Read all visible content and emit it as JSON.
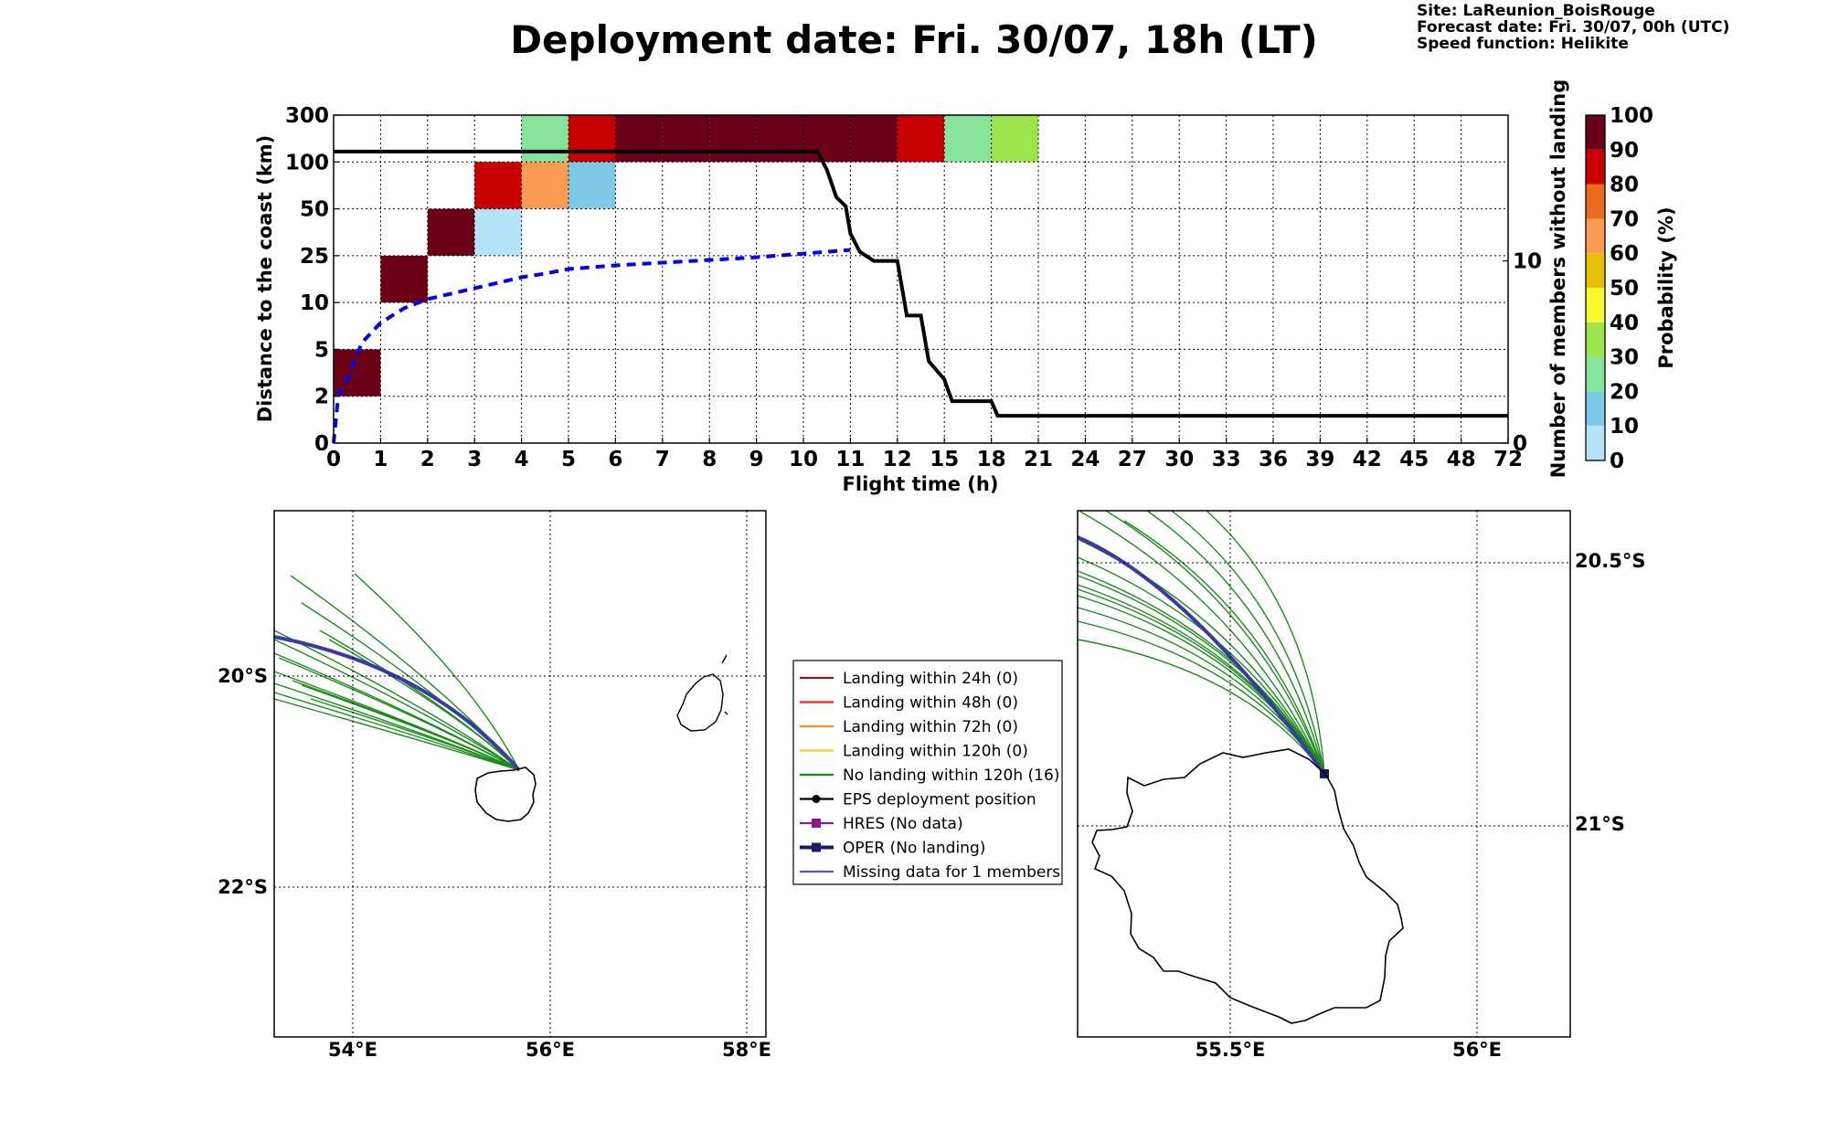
{
  "title": "Deployment date: Fri. 30/07, 18h (LT)",
  "info": {
    "site": "Site: LaReunion_BoisRouge",
    "forecast": "Forecast date: Fri. 30/07, 00h (UTC)",
    "speed": "Speed function: Helikite"
  },
  "chart_data": [
    {
      "type": "heatmap",
      "xlabel": "Flight time (h)",
      "ylabel": "Distance to the coast (km)",
      "y2label": "Number of members without landing",
      "x_ticks": [
        "0",
        "1",
        "2",
        "3",
        "4",
        "5",
        "6",
        "7",
        "8",
        "9",
        "10",
        "11",
        "12",
        "15",
        "18",
        "21",
        "24",
        "27",
        "30",
        "33",
        "36",
        "39",
        "42",
        "45",
        "48",
        "72"
      ],
      "y_ticks": [
        "0",
        "2",
        "5",
        "10",
        "25",
        "50",
        "100",
        "300"
      ],
      "y2_ticks": [
        "0",
        "10"
      ],
      "y2lim": [
        0,
        18
      ],
      "grid": true,
      "cells": [
        {
          "x": "0-1",
          "y": "2-5",
          "prob": 100
        },
        {
          "x": "1-2",
          "y": "10-25",
          "prob": 100
        },
        {
          "x": "2-3",
          "y": "25-50",
          "prob": 100
        },
        {
          "x": "3-4",
          "y": "50-100",
          "prob": 85
        },
        {
          "x": "3-4",
          "y": "25-50",
          "prob": 5
        },
        {
          "x": "4-5",
          "y": "100-300",
          "prob": 25
        },
        {
          "x": "4-5",
          "y": "50-100",
          "prob": 65
        },
        {
          "x": "5-6",
          "y": "100-300",
          "prob": 85
        },
        {
          "x": "5-6",
          "y": "50-100",
          "prob": 15
        },
        {
          "x": "6-7",
          "y": "100-300",
          "prob": 100
        },
        {
          "x": "7-8",
          "y": "100-300",
          "prob": 100
        },
        {
          "x": "8-9",
          "y": "100-300",
          "prob": 100
        },
        {
          "x": "9-10",
          "y": "100-300",
          "prob": 100
        },
        {
          "x": "10-11",
          "y": "100-300",
          "prob": 100
        },
        {
          "x": "11-12",
          "y": "100-300",
          "prob": 100
        },
        {
          "x": "12-15",
          "y": "100-300",
          "prob": 85
        },
        {
          "x": "15-18",
          "y": "100-300",
          "prob": 25
        },
        {
          "x": "18-21",
          "y": "100-300",
          "prob": 35
        }
      ],
      "series": [
        {
          "name": "",
          "style": "dashed-blue",
          "points": [
            [
              0,
              0
            ],
            [
              0.1,
              2.6
            ],
            [
              0.3,
              3.5
            ],
            [
              0.6,
              5.5
            ],
            [
              1.0,
              6.6
            ],
            [
              1.5,
              7.4
            ],
            [
              2.0,
              7.9
            ],
            [
              2.5,
              8.2
            ],
            [
              3.0,
              8.5
            ],
            [
              3.5,
              8.8
            ],
            [
              4.0,
              9.1
            ],
            [
              4.5,
              9.3
            ],
            [
              5.0,
              9.55
            ],
            [
              6.0,
              9.75
            ],
            [
              7.0,
              9.9
            ],
            [
              8.0,
              10.05
            ],
            [
              9.0,
              10.2
            ],
            [
              10.0,
              10.4
            ],
            [
              11.0,
              10.6
            ]
          ]
        },
        {
          "name": "",
          "style": "black-step",
          "points": [
            [
              0,
              16
            ],
            [
              10.3,
              16
            ],
            [
              10.5,
              15
            ],
            [
              10.7,
              13.5
            ],
            [
              10.9,
              13
            ],
            [
              11.0,
              11.5
            ],
            [
              11.2,
              10.5
            ],
            [
              11.5,
              10
            ],
            [
              12.0,
              10
            ],
            [
              12.2,
              9
            ],
            [
              12.4,
              8
            ],
            [
              12.6,
              7
            ],
            [
              13.0,
              7
            ],
            [
              13.5,
              7
            ],
            [
              14.0,
              4.5
            ],
            [
              15.0,
              3.5
            ],
            [
              15.2,
              3
            ],
            [
              15.5,
              2.3
            ],
            [
              17.0,
              2.3
            ],
            [
              18.0,
              2.3
            ],
            [
              18.4,
              1.5
            ],
            [
              24,
              1.5
            ],
            [
              72,
              1.5
            ]
          ]
        }
      ],
      "colorbar": {
        "label": "Probability (%)",
        "ticks": [
          "0",
          "10",
          "20",
          "30",
          "40",
          "50",
          "60",
          "70",
          "80",
          "90",
          "100"
        ],
        "colors": [
          "#b5e3fa",
          "#7ccae6",
          "#86e39a",
          "#9be44c",
          "#f8f82e",
          "#e4c000",
          "#fb9a52",
          "#ea6b1c",
          "#c80000",
          "#6b0017"
        ]
      }
    },
    {
      "type": "map",
      "lon_ticks": [
        "54°E",
        "56°E",
        "58°E"
      ],
      "lat_ticks": [
        "20°S",
        "22°S"
      ],
      "deployment": {
        "lon": 55.68,
        "lat": -20.93
      },
      "tracks_green_count": 16
    },
    {
      "type": "map",
      "lon_ticks": [
        "55.5°E",
        "56°E"
      ],
      "lat_ticks": [
        "20.5°S",
        "21°S"
      ],
      "deployment": {
        "lon": 55.68,
        "lat": -20.93
      }
    }
  ],
  "legend": [
    {
      "label": "Landing within 24h (0)",
      "color": "#8b1a1a",
      "marker": "none"
    },
    {
      "label": "Landing within 48h (0)",
      "color": "#ee2222",
      "marker": "none"
    },
    {
      "label": "Landing within 72h (0)",
      "color": "#ff8c1a",
      "marker": "none"
    },
    {
      "label": "Landing within 120h (0)",
      "color": "#f2d21a",
      "marker": "none"
    },
    {
      "label": "No landing within 120h (16)",
      "color": "#1a8c1a",
      "marker": "none"
    },
    {
      "label": "EPS deployment position",
      "color": "#000000",
      "marker": "circle"
    },
    {
      "label": "HRES (No data)",
      "color": "#8b1a8b",
      "marker": "square"
    },
    {
      "label": "OPER (No landing)",
      "color": "#1a1a6b",
      "marker": "square"
    },
    {
      "label": "Missing data for 1 members",
      "color": "#5555ee",
      "marker": "none"
    }
  ]
}
